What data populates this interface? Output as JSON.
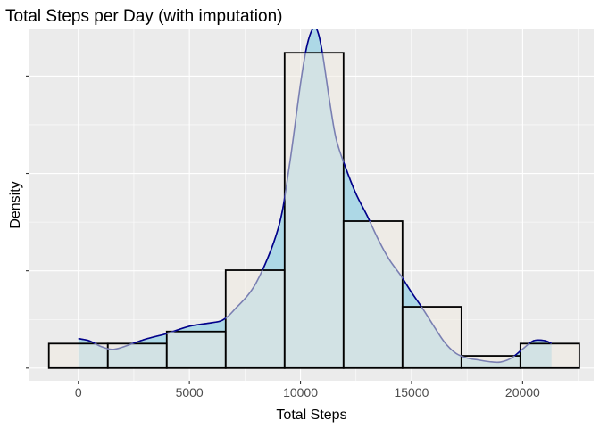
{
  "chart_data": {
    "type": "histogram",
    "title": "Total Steps per Day (with imputation)",
    "xlabel": "Total Steps",
    "ylabel": "Density",
    "xlim": [
      -2200,
      23200
    ],
    "ylim": [
      -6.5e-06,
      0.000174
    ],
    "x_ticks": [
      0,
      5000,
      10000,
      15000,
      20000
    ],
    "x_tick_labels": [
      "0",
      "5000",
      "10000",
      "15000",
      "20000"
    ],
    "y_ticks": [
      0,
      5e-05,
      0.0001,
      0.00015
    ],
    "grid": true,
    "bins": [
      {
        "x0": -1327,
        "x1": 1327,
        "density": 1.26e-05
      },
      {
        "x0": 1327,
        "x1": 3980,
        "density": 1.26e-05
      },
      {
        "x0": 3980,
        "x1": 6633,
        "density": 1.88e-05
      },
      {
        "x0": 6633,
        "x1": 9286,
        "density": 5.03e-05
      },
      {
        "x0": 9286,
        "x1": 11939,
        "density": 0.000162
      },
      {
        "x0": 11939,
        "x1": 14592,
        "density": 7.55e-05
      },
      {
        "x0": 14592,
        "x1": 17245,
        "density": 3.15e-05
      },
      {
        "x0": 17245,
        "x1": 19898,
        "density": 6.3e-06
      },
      {
        "x0": 19898,
        "x1": 22551,
        "density": 1.26e-05
      }
    ],
    "density_curve": {
      "x": [
        0,
        500,
        1000,
        1500,
        2000,
        3000,
        4000,
        5000,
        6000,
        6500,
        7000,
        8000,
        9000,
        9500,
        10000,
        10300,
        10600,
        10800,
        11000,
        11300,
        11600,
        12000,
        12500,
        13000,
        13500,
        14000,
        14500,
        15000,
        15500,
        16000,
        16500,
        17000,
        17500,
        18000,
        18500,
        19000,
        19500,
        20000,
        20500,
        21000,
        21300
      ],
      "y": [
        1.52e-05,
        1.4e-05,
        1.12e-05,
        9.6e-06,
        1.08e-05,
        1.48e-05,
        1.78e-05,
        2.15e-05,
        2.33e-05,
        2.47e-05,
        2.97e-05,
        4.37e-05,
        7.19e-05,
        0.000104,
        0.000146,
        0.000166,
        0.000175,
        0.000172,
        0.000161,
        0.000138,
        0.000118,
        0.000104,
        8.95e-05,
        7.83e-05,
        6.61e-05,
        5.57e-05,
        4.78e-05,
        3.89e-05,
        3.06e-05,
        2.16e-05,
        1.31e-05,
        7.6e-06,
        5.2e-06,
        4.2e-06,
        3.3e-06,
        3.1e-06,
        5.2e-06,
        9.8e-06,
        1.41e-05,
        1.41e-05,
        1.26e-05
      ]
    },
    "colors": {
      "panel_bg": "#ebebeb",
      "grid": "#ffffff",
      "bar_fill": "#f0ebe1",
      "bar_stroke": "#000000",
      "density_fill": "#add8e6",
      "density_line": "#00008b",
      "overlap_line": "#7a7fb2"
    }
  }
}
